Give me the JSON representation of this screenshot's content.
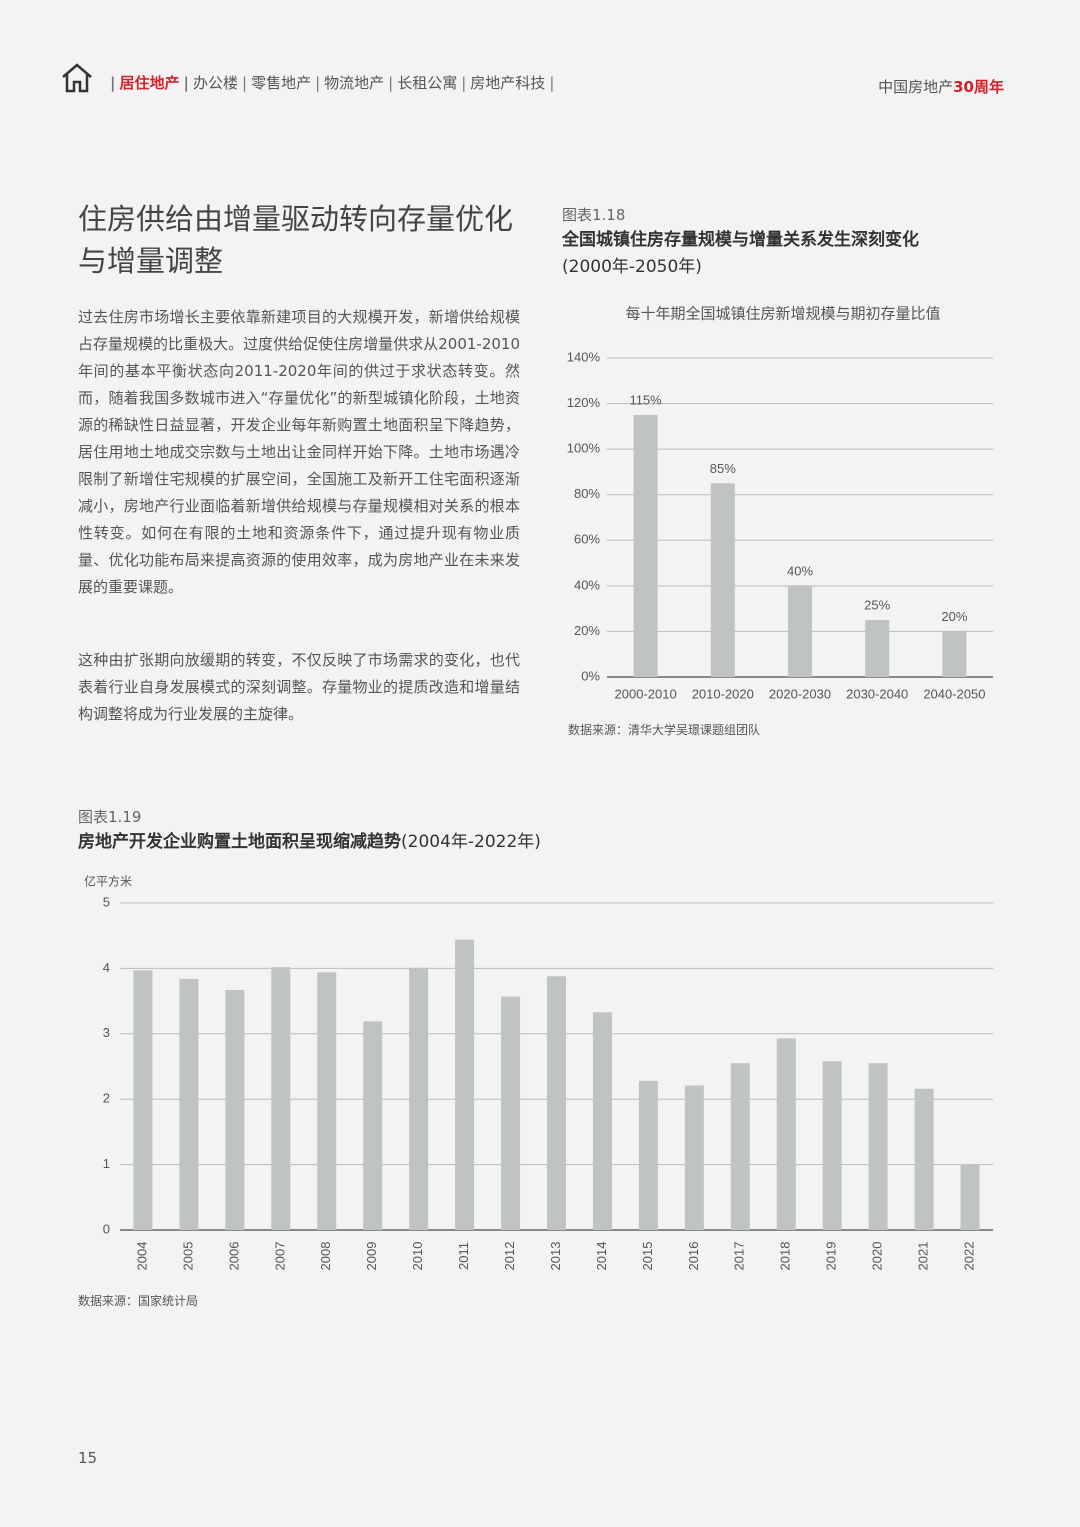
{
  "header": {
    "nav": [
      "居住地产",
      "办公楼",
      "零售地产",
      "物流地产",
      "长租公寓",
      "房地产科技"
    ],
    "brand": "中国房地产",
    "brand_highlight": "30周年"
  },
  "article": {
    "title": "住房供给由增量驱动转向存量优化与增量调整",
    "paragraphs": [
      "过去住房市场增长主要依靠新建项目的大规模开发，新增供给规模占存量规模的比重极大。过度供给促使住房增量供求从2001-2010年间的基本平衡状态向2011-2020年间的供过于求状态转变。然而，随着我国多数城市进入“存量优化”的新型城镇化阶段，土地资源的稀缺性日益显著，开发企业每年新购置土地面积呈下降趋势，居住用地土地成交宗数与土地出让金同样开始下降。土地市场遇冷限制了新增住宅规模的扩展空间，全国施工及新开工住宅面积逐渐减小，房地产行业面临着新增供给规模与存量规模相对关系的根本性转变。如何在有限的土地和资源条件下，通过提升现有物业质量、优化功能布局来提高资源的使用效率，成为房地产业在未来发展的重要课题。",
      "这种由扩张期向放缓期的转变，不仅反映了市场需求的变化，也代表着行业自身发展模式的深刻调整。存量物业的提质改造和增量结构调整将成为行业发展的主旋律。"
    ]
  },
  "page_number": "15",
  "chart_data": [
    {
      "type": "bar",
      "figure_label": "图表1.18",
      "title": "全国城镇住房存量规模与增量关系发生深刻变化",
      "title_note": "(2000年-2050年)",
      "subtitle": "每十年期全国城镇住房新增规模与期初存量比值",
      "categories": [
        "2000-2010",
        "2010-2020",
        "2020-2030",
        "2030-2040",
        "2040-2050"
      ],
      "values": [
        115,
        85,
        40,
        25,
        20
      ],
      "value_labels": [
        "115%",
        "85%",
        "40%",
        "25%",
        "20%"
      ],
      "color": "#bfc3c3",
      "ylim": [
        0,
        140
      ],
      "yticks": [
        {
          "value": 0,
          "label": "0%"
        },
        {
          "value": 20,
          "label": "20%"
        },
        {
          "value": 40,
          "label": "40%"
        },
        {
          "value": 60,
          "label": "60%"
        },
        {
          "value": 80,
          "label": "80%"
        },
        {
          "value": 100,
          "label": "100%"
        },
        {
          "value": 120,
          "label": "120%"
        },
        {
          "value": 140,
          "label": "140%"
        }
      ],
      "grid": true,
      "source": "数据来源：清华大学吴璟课题组团队"
    },
    {
      "type": "bar",
      "figure_label": "图表1.19",
      "title": "房地产开发企业购置土地面积呈现缩减趋势",
      "title_note": "(2004年-2022年)",
      "y_label": "亿平方米",
      "categories": [
        "2004",
        "2005",
        "2006",
        "2007",
        "2008",
        "2009",
        "2010",
        "2011",
        "2012",
        "2013",
        "2014",
        "2015",
        "2016",
        "2017",
        "2018",
        "2019",
        "2020",
        "2021",
        "2022"
      ],
      "values": [
        3.97,
        3.84,
        3.67,
        4.02,
        3.94,
        3.19,
        4.01,
        4.44,
        3.57,
        3.88,
        3.33,
        2.28,
        2.21,
        2.55,
        2.93,
        2.58,
        2.55,
        2.16,
        1.01
      ],
      "color": "#bfc3c3",
      "ylim": [
        0,
        5
      ],
      "yticks": [
        0,
        1,
        2,
        3,
        4,
        5
      ],
      "grid": true,
      "source": "数据来源：国家统计局"
    }
  ]
}
